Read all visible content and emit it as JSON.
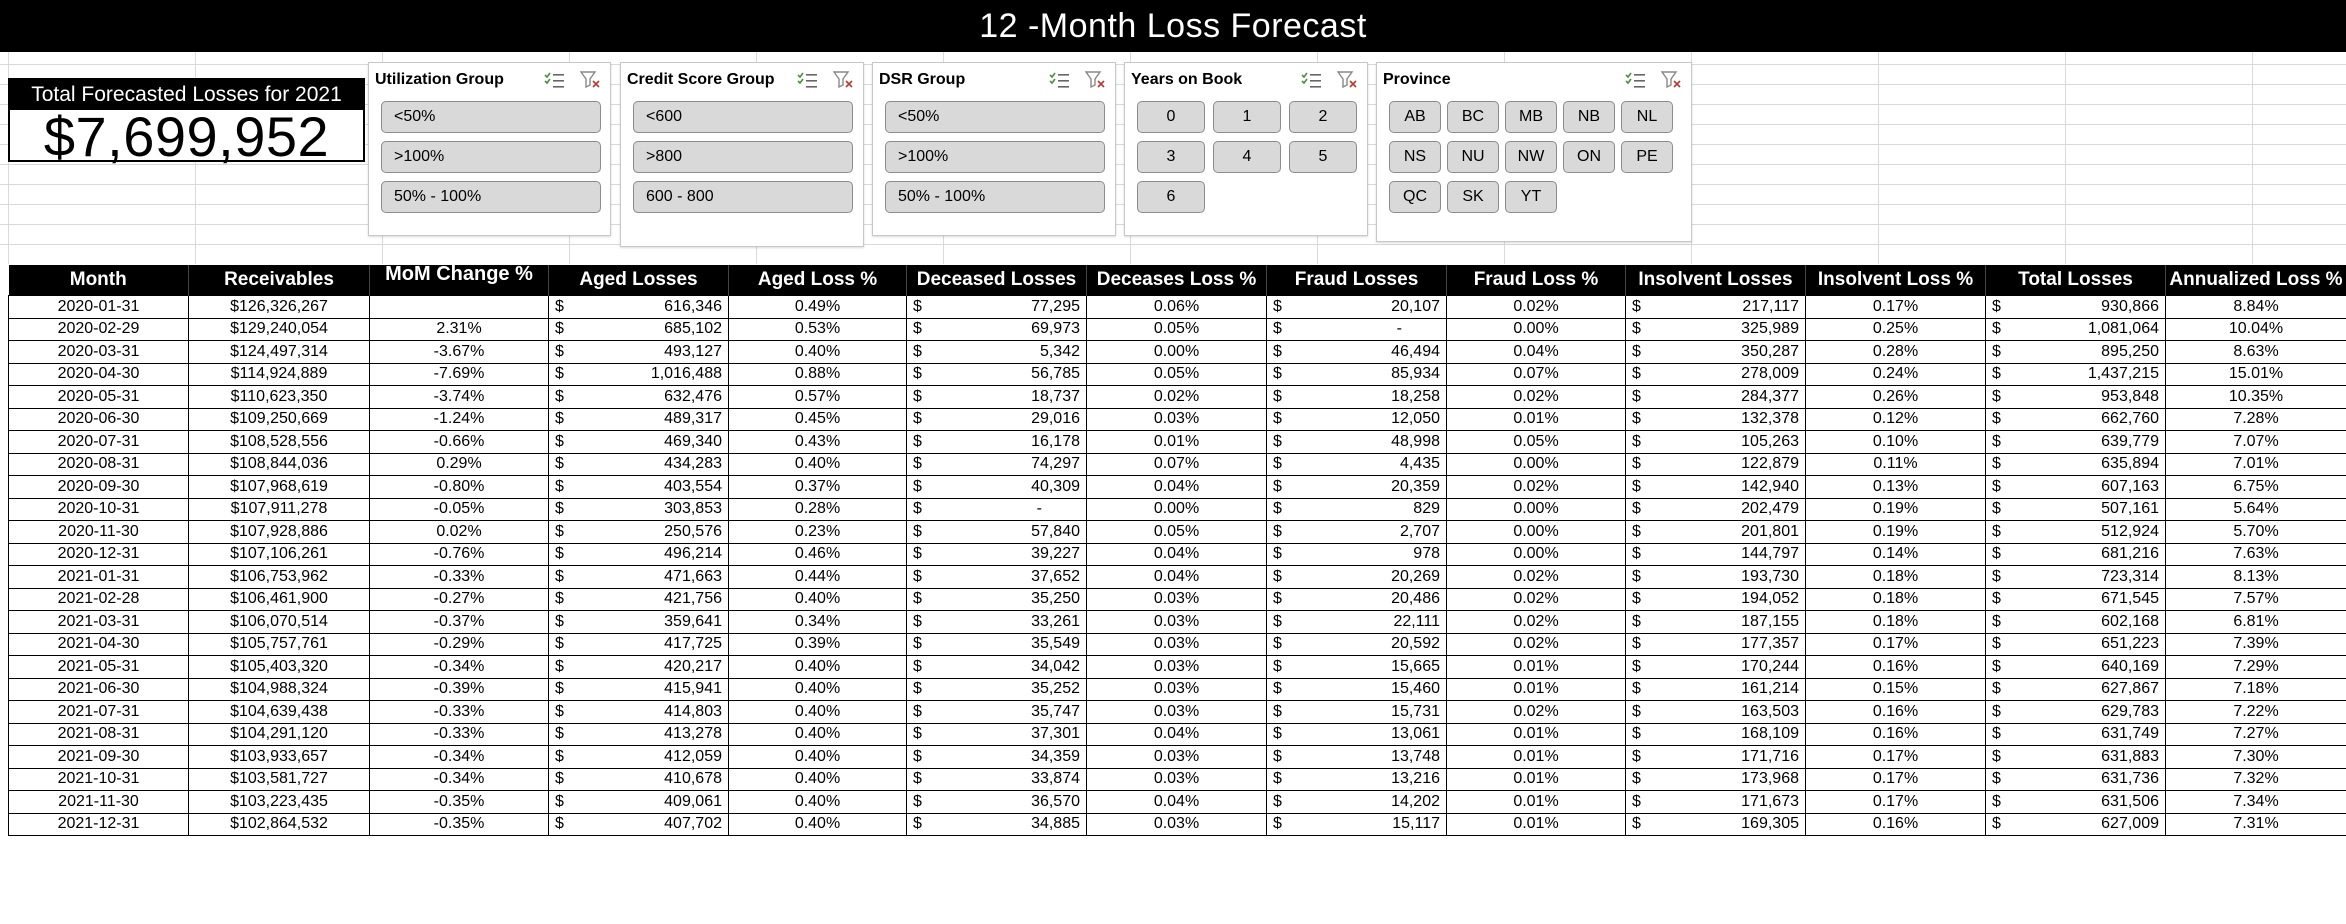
{
  "title": "12 -Month Loss Forecast",
  "total": {
    "label": "Total Forecasted Losses for 2021",
    "value": "$7,699,952"
  },
  "slicers": [
    {
      "name": "Utilization Group",
      "items": [
        "<50%",
        ">100%",
        "50% - 100%"
      ]
    },
    {
      "name": "Credit Score Group",
      "items": [
        "<600",
        ">800",
        "600 - 800"
      ]
    },
    {
      "name": "DSR Group",
      "items": [
        "<50%",
        ">100%",
        "50% - 100%"
      ]
    },
    {
      "name": "Years on Book",
      "items": [
        "0",
        "1",
        "2",
        "3",
        "4",
        "5",
        "6"
      ]
    },
    {
      "name": "Province",
      "items": [
        "AB",
        "BC",
        "MB",
        "NB",
        "NL",
        "NS",
        "NU",
        "NW",
        "ON",
        "PE",
        "QC",
        "SK",
        "YT"
      ]
    }
  ],
  "icons": {
    "multi_select": "multi-select-icon",
    "clear_filter": "clear-filter-icon"
  },
  "currency_symbol": "$",
  "table": {
    "headers": [
      "Month",
      "Receivables",
      "MoM Change %",
      "Aged Losses",
      "Aged Loss %",
      "Deceased Losses",
      "Deceases Loss %",
      "Fraud Losses",
      "Fraud Loss %",
      "Insolvent Losses",
      "Insolvent Loss %",
      "Total Losses",
      "Annualized Loss %"
    ],
    "rows": [
      [
        "2020-01-31",
        "$126,326,267",
        "",
        "616,346",
        "0.49%",
        "77,295",
        "0.06%",
        "20,107",
        "0.02%",
        "217,117",
        "0.17%",
        "930,866",
        "8.84%"
      ],
      [
        "2020-02-29",
        "$129,240,054",
        "2.31%",
        "685,102",
        "0.53%",
        "69,973",
        "0.05%",
        "-",
        "0.00%",
        "325,989",
        "0.25%",
        "1,081,064",
        "10.04%"
      ],
      [
        "2020-03-31",
        "$124,497,314",
        "-3.67%",
        "493,127",
        "0.40%",
        "5,342",
        "0.00%",
        "46,494",
        "0.04%",
        "350,287",
        "0.28%",
        "895,250",
        "8.63%"
      ],
      [
        "2020-04-30",
        "$114,924,889",
        "-7.69%",
        "1,016,488",
        "0.88%",
        "56,785",
        "0.05%",
        "85,934",
        "0.07%",
        "278,009",
        "0.24%",
        "1,437,215",
        "15.01%"
      ],
      [
        "2020-05-31",
        "$110,623,350",
        "-3.74%",
        "632,476",
        "0.57%",
        "18,737",
        "0.02%",
        "18,258",
        "0.02%",
        "284,377",
        "0.26%",
        "953,848",
        "10.35%"
      ],
      [
        "2020-06-30",
        "$109,250,669",
        "-1.24%",
        "489,317",
        "0.45%",
        "29,016",
        "0.03%",
        "12,050",
        "0.01%",
        "132,378",
        "0.12%",
        "662,760",
        "7.28%"
      ],
      [
        "2020-07-31",
        "$108,528,556",
        "-0.66%",
        "469,340",
        "0.43%",
        "16,178",
        "0.01%",
        "48,998",
        "0.05%",
        "105,263",
        "0.10%",
        "639,779",
        "7.07%"
      ],
      [
        "2020-08-31",
        "$108,844,036",
        "0.29%",
        "434,283",
        "0.40%",
        "74,297",
        "0.07%",
        "4,435",
        "0.00%",
        "122,879",
        "0.11%",
        "635,894",
        "7.01%"
      ],
      [
        "2020-09-30",
        "$107,968,619",
        "-0.80%",
        "403,554",
        "0.37%",
        "40,309",
        "0.04%",
        "20,359",
        "0.02%",
        "142,940",
        "0.13%",
        "607,163",
        "6.75%"
      ],
      [
        "2020-10-31",
        "$107,911,278",
        "-0.05%",
        "303,853",
        "0.28%",
        "-",
        "0.00%",
        "829",
        "0.00%",
        "202,479",
        "0.19%",
        "507,161",
        "5.64%"
      ],
      [
        "2020-11-30",
        "$107,928,886",
        "0.02%",
        "250,576",
        "0.23%",
        "57,840",
        "0.05%",
        "2,707",
        "0.00%",
        "201,801",
        "0.19%",
        "512,924",
        "5.70%"
      ],
      [
        "2020-12-31",
        "$107,106,261",
        "-0.76%",
        "496,214",
        "0.46%",
        "39,227",
        "0.04%",
        "978",
        "0.00%",
        "144,797",
        "0.14%",
        "681,216",
        "7.63%"
      ],
      [
        "2021-01-31",
        "$106,753,962",
        "-0.33%",
        "471,663",
        "0.44%",
        "37,652",
        "0.04%",
        "20,269",
        "0.02%",
        "193,730",
        "0.18%",
        "723,314",
        "8.13%"
      ],
      [
        "2021-02-28",
        "$106,461,900",
        "-0.27%",
        "421,756",
        "0.40%",
        "35,250",
        "0.03%",
        "20,486",
        "0.02%",
        "194,052",
        "0.18%",
        "671,545",
        "7.57%"
      ],
      [
        "2021-03-31",
        "$106,070,514",
        "-0.37%",
        "359,641",
        "0.34%",
        "33,261",
        "0.03%",
        "22,111",
        "0.02%",
        "187,155",
        "0.18%",
        "602,168",
        "6.81%"
      ],
      [
        "2021-04-30",
        "$105,757,761",
        "-0.29%",
        "417,725",
        "0.39%",
        "35,549",
        "0.03%",
        "20,592",
        "0.02%",
        "177,357",
        "0.17%",
        "651,223",
        "7.39%"
      ],
      [
        "2021-05-31",
        "$105,403,320",
        "-0.34%",
        "420,217",
        "0.40%",
        "34,042",
        "0.03%",
        "15,665",
        "0.01%",
        "170,244",
        "0.16%",
        "640,169",
        "7.29%"
      ],
      [
        "2021-06-30",
        "$104,988,324",
        "-0.39%",
        "415,941",
        "0.40%",
        "35,252",
        "0.03%",
        "15,460",
        "0.01%",
        "161,214",
        "0.15%",
        "627,867",
        "7.18%"
      ],
      [
        "2021-07-31",
        "$104,639,438",
        "-0.33%",
        "414,803",
        "0.40%",
        "35,747",
        "0.03%",
        "15,731",
        "0.02%",
        "163,503",
        "0.16%",
        "629,783",
        "7.22%"
      ],
      [
        "2021-08-31",
        "$104,291,120",
        "-0.33%",
        "413,278",
        "0.40%",
        "37,301",
        "0.04%",
        "13,061",
        "0.01%",
        "168,109",
        "0.16%",
        "631,749",
        "7.27%"
      ],
      [
        "2021-09-30",
        "$103,933,657",
        "-0.34%",
        "412,059",
        "0.40%",
        "34,359",
        "0.03%",
        "13,748",
        "0.01%",
        "171,716",
        "0.17%",
        "631,883",
        "7.30%"
      ],
      [
        "2021-10-31",
        "$103,581,727",
        "-0.34%",
        "410,678",
        "0.40%",
        "33,874",
        "0.03%",
        "13,216",
        "0.01%",
        "173,968",
        "0.17%",
        "631,736",
        "7.32%"
      ],
      [
        "2021-11-30",
        "$103,223,435",
        "-0.35%",
        "409,061",
        "0.40%",
        "36,570",
        "0.04%",
        "14,202",
        "0.01%",
        "171,673",
        "0.17%",
        "631,506",
        "7.34%"
      ],
      [
        "2021-12-31",
        "$102,864,532",
        "-0.35%",
        "407,702",
        "0.40%",
        "34,885",
        "0.03%",
        "15,117",
        "0.01%",
        "169,305",
        "0.16%",
        "627,009",
        "7.31%"
      ]
    ]
  }
}
